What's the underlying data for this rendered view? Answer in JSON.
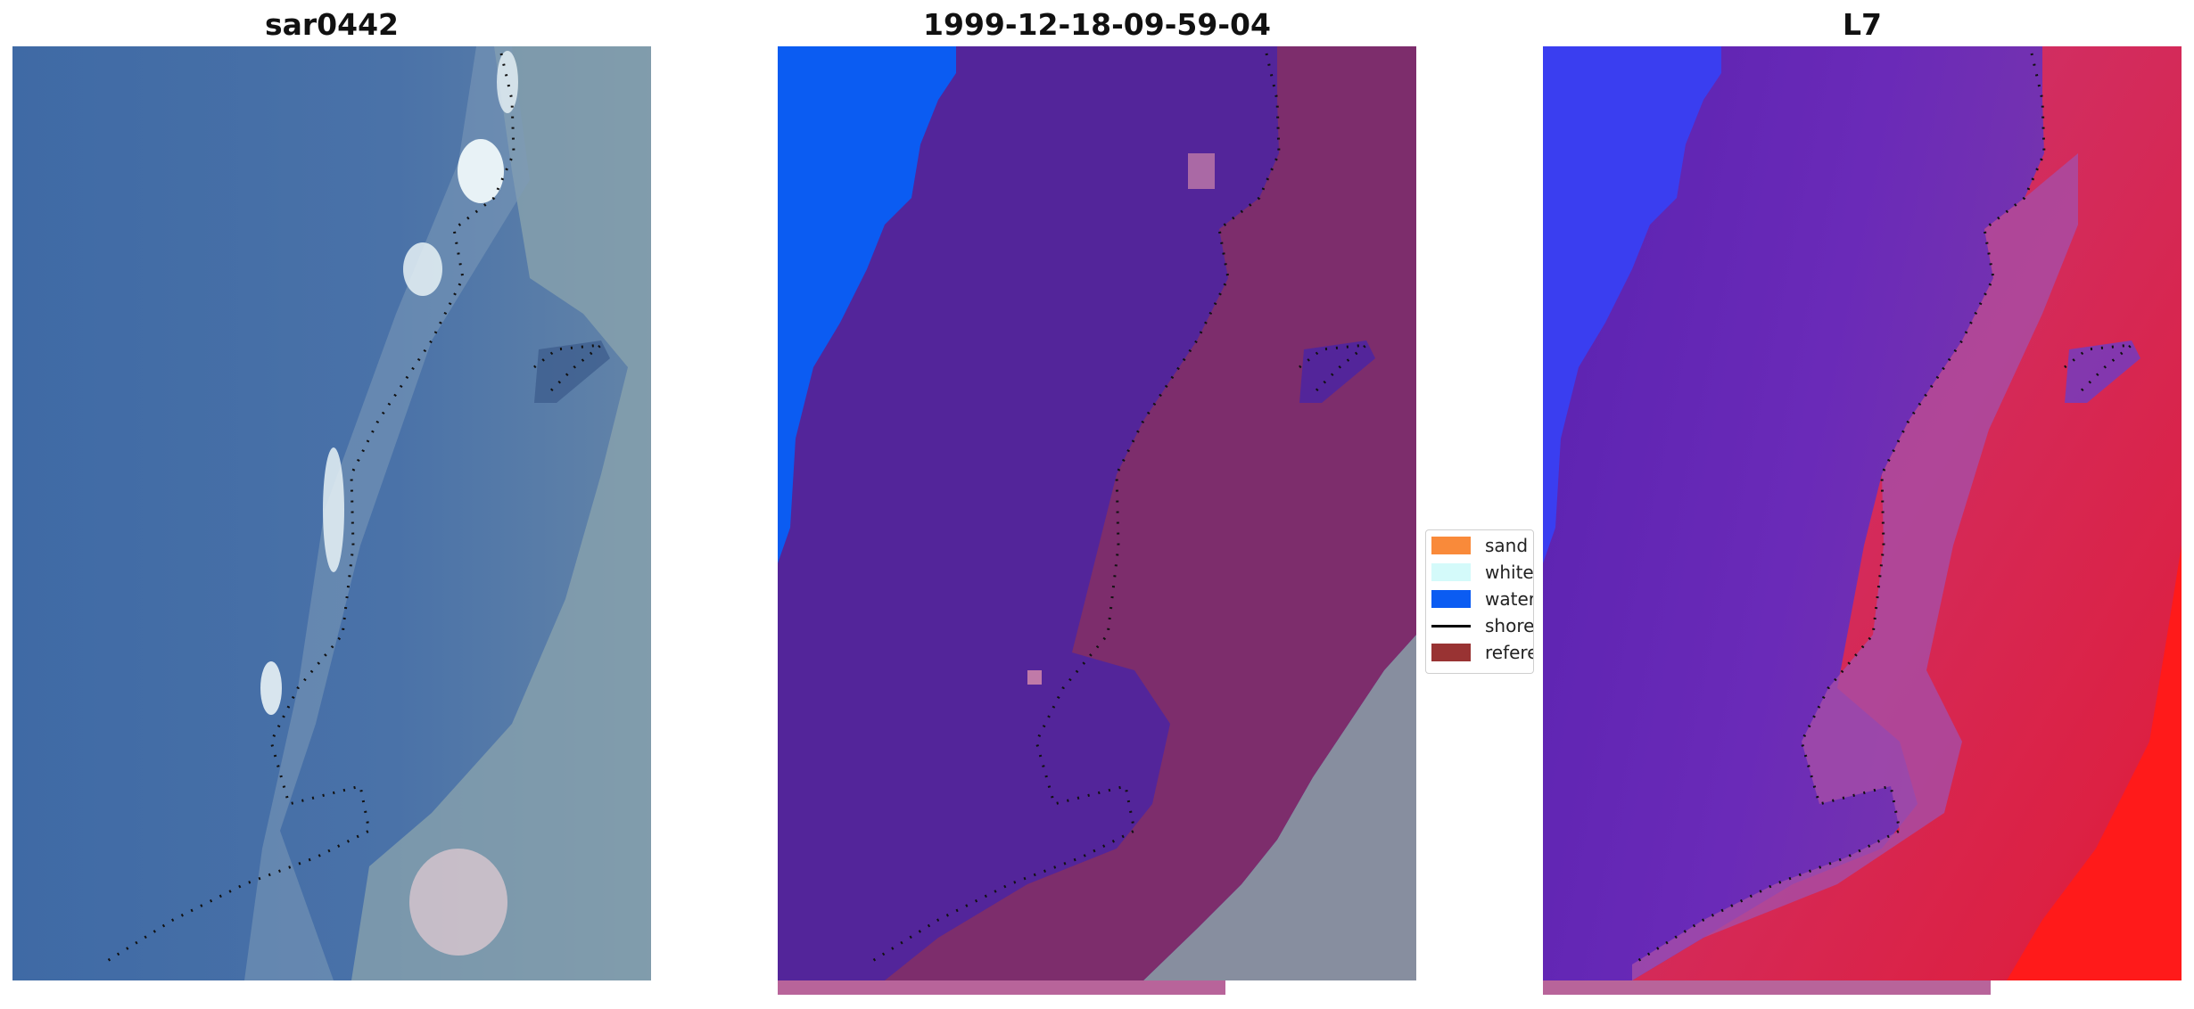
{
  "panels": [
    {
      "title": "sar0442"
    },
    {
      "title": "1999-12-18-09-59-04"
    },
    {
      "title": "L7"
    }
  ],
  "legend": {
    "items": [
      {
        "label": "sand",
        "color": "#f98a3a",
        "kind": "patch"
      },
      {
        "label": "whitewater",
        "color": "#d4fafa",
        "kind": "patch"
      },
      {
        "label": "water",
        "color": "#0b5cf2",
        "kind": "patch"
      },
      {
        "label": "shoreline",
        "color": "#000000",
        "kind": "line"
      },
      {
        "label": "reference",
        "color": "#993333",
        "kind": "patch"
      }
    ]
  },
  "colors": {
    "rgb_water": "#4a6da3",
    "rgb_land": "#8aa3a8",
    "class_water_dark": "#53259a",
    "class_water": "#0b5cf2",
    "class_land": "#7d2d6c",
    "ndwi_low": "#6a22b8",
    "ndwi_high": "#e0204a",
    "bar": "#b8649a"
  }
}
